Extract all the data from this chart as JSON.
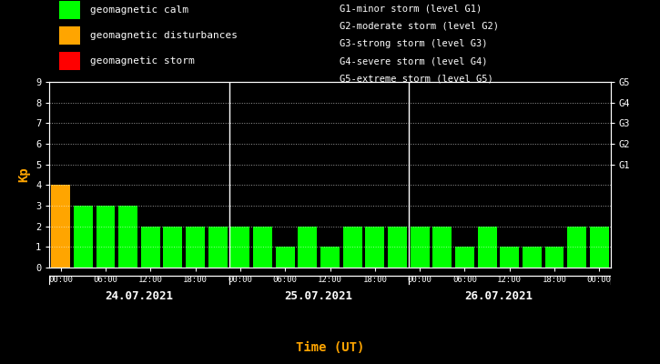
{
  "bg_color": "#000000",
  "bar_values": [
    4,
    3,
    3,
    3,
    2,
    2,
    2,
    2,
    2,
    2,
    1,
    2,
    1,
    2,
    2,
    2,
    2,
    2,
    1,
    2,
    1,
    1,
    1,
    2,
    2
  ],
  "bar_colors": [
    "#FFA500",
    "#00FF00",
    "#00FF00",
    "#00FF00",
    "#00FF00",
    "#00FF00",
    "#00FF00",
    "#00FF00",
    "#00FF00",
    "#00FF00",
    "#00FF00",
    "#00FF00",
    "#00FF00",
    "#00FF00",
    "#00FF00",
    "#00FF00",
    "#00FF00",
    "#00FF00",
    "#00FF00",
    "#00FF00",
    "#00FF00",
    "#00FF00",
    "#00FF00",
    "#00FF00",
    "#00FF00"
  ],
  "ylabel": "Kp",
  "ylabel_color": "#FFA500",
  "xlabel": "Time (UT)",
  "xlabel_color": "#FFA500",
  "ylim": [
    0,
    9
  ],
  "yticks": [
    0,
    1,
    2,
    3,
    4,
    5,
    6,
    7,
    8,
    9
  ],
  "axis_color": "#FFFFFF",
  "tick_color": "#FFFFFF",
  "day_labels": [
    "24.07.2021",
    "25.07.2021",
    "26.07.2021"
  ],
  "hour_labels": [
    "00:00",
    "06:00",
    "12:00",
    "18:00",
    "00:00",
    "06:00",
    "12:00",
    "18:00",
    "00:00",
    "06:00",
    "12:00",
    "18:00",
    "00:00"
  ],
  "right_ytick_labels": [
    "G1",
    "G2",
    "G3",
    "G4",
    "G5"
  ],
  "right_ytick_values": [
    5,
    6,
    7,
    8,
    9
  ],
  "legend_left": [
    {
      "label": "geomagnetic calm",
      "color": "#00FF00"
    },
    {
      "label": "geomagnetic disturbances",
      "color": "#FFA500"
    },
    {
      "label": "geomagnetic storm",
      "color": "#FF0000"
    }
  ],
  "legend_right": [
    "G1-minor storm (level G1)",
    "G2-moderate storm (level G2)",
    "G3-strong storm (level G3)",
    "G4-severe storm (level G4)",
    "G5-extreme storm (level G5)"
  ],
  "font_color": "#FFFFFF",
  "total_bars": 25,
  "bars_per_day": 8
}
